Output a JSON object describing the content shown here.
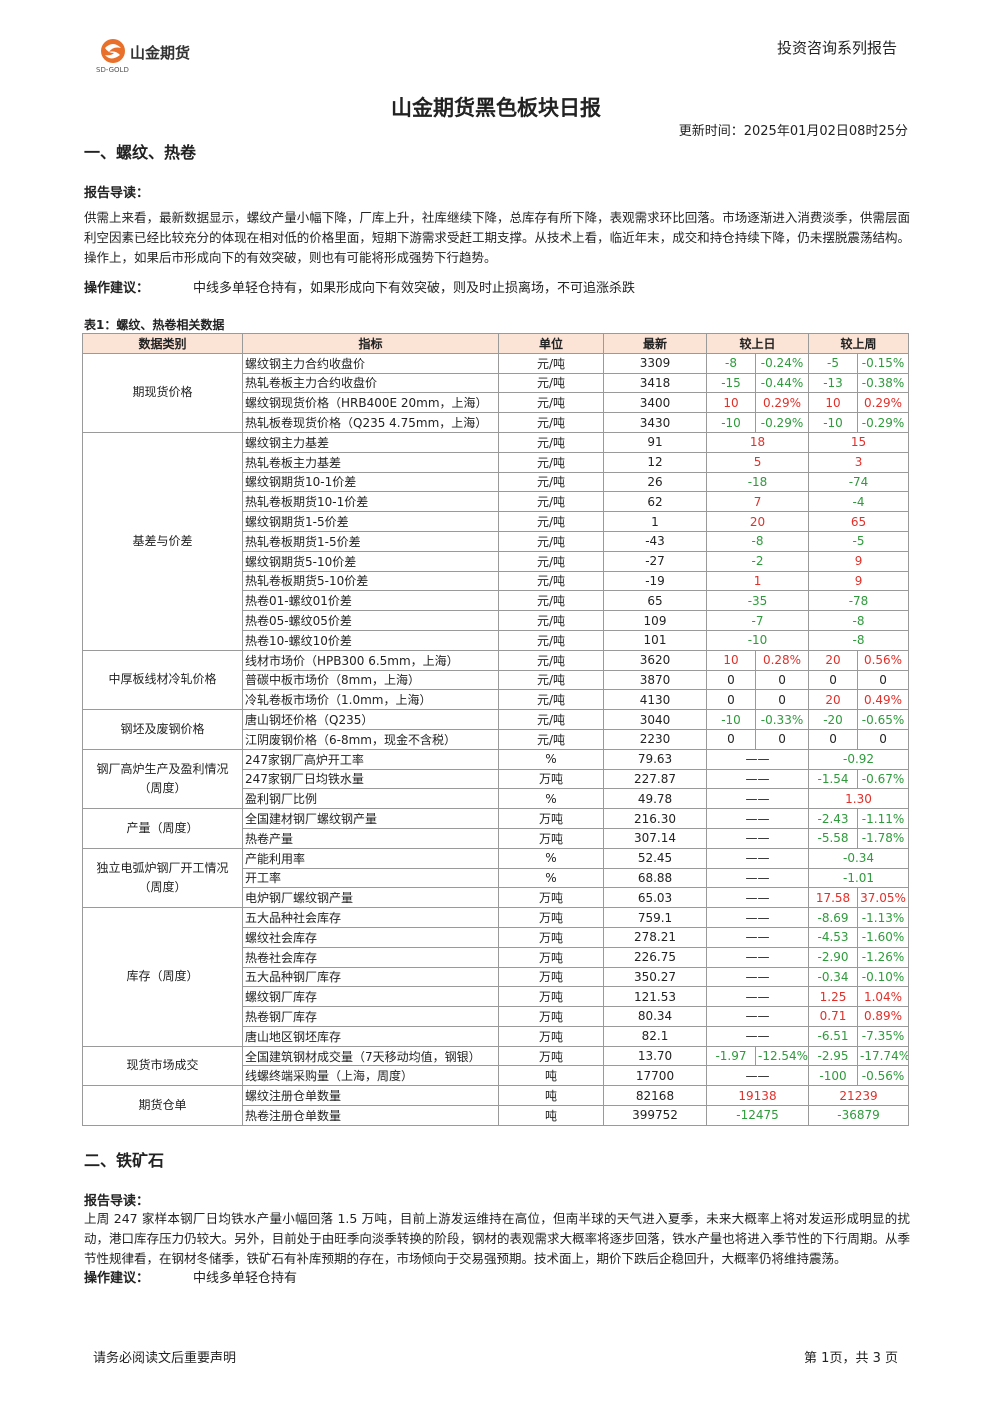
{
  "header": {
    "logo_text": "山金期货",
    "logo_sub": "SD-GOLD",
    "series": "投资咨询系列报告"
  },
  "title": "山金期货黑色板块日报",
  "update_time": "更新时间：2025年01月02日08时25分",
  "section1": {
    "heading": "一、螺纹、热卷",
    "guide_label": "报告导读：",
    "guide": "供需上来看，最新数据显示，螺纹产量小幅下降，厂库上升，社库继续下降，总库存有所下降，表观需求环比回落。市场逐渐进入消费淡季，供需层面利空因素已经比较充分的体现在相对低的价格里面，短期下游需求受赶工期支撑。从技术上看，临近年末，成交和持仓持续下降，仍未摆脱震荡结构。操作上，如果后市形成向下的有效突破，则也有可能将形成强势下行趋势。",
    "advice_label": "操作建议：",
    "advice": "中线多单轻仓持有，如果形成向下有效突破，则及时止损离场，不可追涨杀跌"
  },
  "table": {
    "caption": "表1：螺纹、热卷相关数据",
    "header": [
      "数据类别",
      "指标",
      "单位",
      "最新",
      "较上日",
      "较上周"
    ],
    "groups": [
      {
        "name": "期现货价格",
        "rows": [
          {
            "indicator": "螺纹钢主力合约收盘价",
            "unit": "元/吨",
            "latest": "3309",
            "day": [
              "-8",
              "-0.24%"
            ],
            "week": [
              "-5",
              "-0.15%"
            ]
          },
          {
            "indicator": "热轧卷板主力合约收盘价",
            "unit": "元/吨",
            "latest": "3418",
            "day": [
              "-15",
              "-0.44%"
            ],
            "week": [
              "-13",
              "-0.38%"
            ]
          },
          {
            "indicator": "螺纹钢现货价格（HRB400E 20mm，上海）",
            "unit": "元/吨",
            "latest": "3400",
            "day": [
              "10",
              "0.29%"
            ],
            "week": [
              "10",
              "0.29%"
            ]
          },
          {
            "indicator": "热轧板卷现货价格（Q235 4.75mm，上海）",
            "unit": "元/吨",
            "latest": "3430",
            "day": [
              "-10",
              "-0.29%"
            ],
            "week": [
              "-10",
              "-0.29%"
            ]
          }
        ]
      },
      {
        "name": "基差与价差",
        "rows": [
          {
            "indicator": "螺纹钢主力基差",
            "unit": "元/吨",
            "latest": "91",
            "day": [
              "18"
            ],
            "week": [
              "15"
            ]
          },
          {
            "indicator": "热轧卷板主力基差",
            "unit": "元/吨",
            "latest": "12",
            "day": [
              "5"
            ],
            "week": [
              "3"
            ]
          },
          {
            "indicator": "螺纹钢期货10-1价差",
            "unit": "元/吨",
            "latest": "26",
            "day": [
              "-18"
            ],
            "week": [
              "-74"
            ]
          },
          {
            "indicator": "热轧卷板期货10-1价差",
            "unit": "元/吨",
            "latest": "62",
            "day": [
              "7"
            ],
            "week": [
              "-4"
            ]
          },
          {
            "indicator": "螺纹钢期货1-5价差",
            "unit": "元/吨",
            "latest": "1",
            "day": [
              "20"
            ],
            "week": [
              "65"
            ]
          },
          {
            "indicator": "热轧卷板期货1-5价差",
            "unit": "元/吨",
            "latest": "-43",
            "day": [
              "-8"
            ],
            "week": [
              "-5"
            ]
          },
          {
            "indicator": "螺纹钢期货5-10价差",
            "unit": "元/吨",
            "latest": "-27",
            "day": [
              "-2"
            ],
            "week": [
              "9"
            ]
          },
          {
            "indicator": "热轧卷板期货5-10价差",
            "unit": "元/吨",
            "latest": "-19",
            "day": [
              "1"
            ],
            "week": [
              "9"
            ]
          },
          {
            "indicator": "热卷01-螺纹01价差",
            "unit": "元/吨",
            "latest": "65",
            "day": [
              "-35"
            ],
            "week": [
              "-78"
            ]
          },
          {
            "indicator": "热卷05-螺纹05价差",
            "unit": "元/吨",
            "latest": "109",
            "day": [
              "-7"
            ],
            "week": [
              "-8"
            ]
          },
          {
            "indicator": "热卷10-螺纹10价差",
            "unit": "元/吨",
            "latest": "101",
            "day": [
              "-10"
            ],
            "week": [
              "-8"
            ]
          }
        ]
      },
      {
        "name": "中厚板线材冷轧价格",
        "rows": [
          {
            "indicator": "线材市场价（HPB300 6.5mm，上海）",
            "unit": "元/吨",
            "latest": "3620",
            "day": [
              "10",
              "0.28%"
            ],
            "week": [
              "20",
              "0.56%"
            ]
          },
          {
            "indicator": "普碳中板市场价（8mm，上海）",
            "unit": "元/吨",
            "latest": "3870",
            "day": [
              "0",
              "0"
            ],
            "week": [
              "0",
              "0"
            ]
          },
          {
            "indicator": "冷轧卷板市场价（1.0mm，上海）",
            "unit": "元/吨",
            "latest": "4130",
            "day": [
              "0",
              "0"
            ],
            "week": [
              "20",
              "0.49%"
            ]
          }
        ]
      },
      {
        "name": "钢坯及废钢价格",
        "rows": [
          {
            "indicator": "唐山钢坯价格（Q235）",
            "unit": "元/吨",
            "latest": "3040",
            "day": [
              "-10",
              "-0.33%"
            ],
            "week": [
              "-20",
              "-0.65%"
            ]
          },
          {
            "indicator": "江阴废钢价格（6-8mm，现金不含税）",
            "unit": "元/吨",
            "latest": "2230",
            "day": [
              "0",
              "0"
            ],
            "week": [
              "0",
              "0"
            ]
          }
        ]
      },
      {
        "name": "钢厂高炉生产及盈利情况（周度）",
        "rows": [
          {
            "indicator": "247家钢厂高炉开工率",
            "unit": "%",
            "latest": "79.63",
            "day": [
              "——"
            ],
            "week": [
              "-0.92"
            ]
          },
          {
            "indicator": "247家钢厂日均铁水量",
            "unit": "万吨",
            "latest": "227.87",
            "day": [
              "——"
            ],
            "week": [
              "-1.54",
              "-0.67%"
            ]
          },
          {
            "indicator": "盈利钢厂比例",
            "unit": "%",
            "latest": "49.78",
            "day": [
              "——"
            ],
            "week": [
              "1.30"
            ]
          }
        ]
      },
      {
        "name": "产量（周度）",
        "rows": [
          {
            "indicator": "全国建材钢厂螺纹钢产量",
            "unit": "万吨",
            "latest": "216.30",
            "day": [
              "——"
            ],
            "week": [
              "-2.43",
              "-1.11%"
            ]
          },
          {
            "indicator": "热卷产量",
            "unit": "万吨",
            "latest": "307.14",
            "day": [
              "——"
            ],
            "week": [
              "-5.58",
              "-1.78%"
            ]
          }
        ]
      },
      {
        "name": "独立电弧炉钢厂开工情况（周度）",
        "rows": [
          {
            "indicator": "产能利用率",
            "unit": "%",
            "latest": "52.45",
            "day": [
              "——"
            ],
            "week": [
              "-0.34"
            ]
          },
          {
            "indicator": "开工率",
            "unit": "%",
            "latest": "68.88",
            "day": [
              "——"
            ],
            "week": [
              "-1.01"
            ]
          },
          {
            "indicator": "电炉钢厂螺纹钢产量",
            "unit": "万吨",
            "latest": "65.03",
            "day": [
              "——"
            ],
            "week": [
              "17.58",
              "37.05%"
            ]
          }
        ]
      },
      {
        "name": "库存（周度）",
        "rows": [
          {
            "indicator": "五大品种社会库存",
            "unit": "万吨",
            "latest": "759.1",
            "day": [
              "——"
            ],
            "week": [
              "-8.69",
              "-1.13%"
            ]
          },
          {
            "indicator": "螺纹社会库存",
            "unit": "万吨",
            "latest": "278.21",
            "day": [
              "——"
            ],
            "week": [
              "-4.53",
              "-1.60%"
            ]
          },
          {
            "indicator": "热卷社会库存",
            "unit": "万吨",
            "latest": "226.75",
            "day": [
              "——"
            ],
            "week": [
              "-2.90",
              "-1.26%"
            ]
          },
          {
            "indicator": "五大品种钢厂库存",
            "unit": "万吨",
            "latest": "350.27",
            "day": [
              "——"
            ],
            "week": [
              "-0.34",
              "-0.10%"
            ]
          },
          {
            "indicator": "螺纹钢厂库存",
            "unit": "万吨",
            "latest": "121.53",
            "day": [
              "——"
            ],
            "week": [
              "1.25",
              "1.04%"
            ]
          },
          {
            "indicator": "热卷钢厂库存",
            "unit": "万吨",
            "latest": "80.34",
            "day": [
              "——"
            ],
            "week": [
              "0.71",
              "0.89%"
            ]
          },
          {
            "indicator": "唐山地区钢坯库存",
            "unit": "万吨",
            "latest": "82.1",
            "day": [
              "——"
            ],
            "week": [
              "-6.51",
              "-7.35%"
            ]
          }
        ]
      },
      {
        "name": "现货市场成交",
        "rows": [
          {
            "indicator": "全国建筑钢材成交量（7天移动均值，钢银）",
            "unit": "万吨",
            "latest": "13.70",
            "day": [
              "-1.97",
              "-12.54%"
            ],
            "week": [
              "-2.95",
              "-17.74%"
            ]
          },
          {
            "indicator": "线螺终端采购量（上海，周度）",
            "unit": "吨",
            "latest": "17700",
            "day": [
              "——"
            ],
            "week": [
              "-100",
              "-0.56%"
            ]
          }
        ]
      },
      {
        "name": "期货仓单",
        "rows": [
          {
            "indicator": "螺纹注册仓单数量",
            "unit": "吨",
            "latest": "82168",
            "day": [
              "19138"
            ],
            "week": [
              "21239"
            ]
          },
          {
            "indicator": "热卷注册仓单数量",
            "unit": "吨",
            "latest": "399752",
            "day": [
              "-12475"
            ],
            "week": [
              "-36879"
            ]
          }
        ]
      }
    ]
  },
  "section2": {
    "heading": "二、铁矿石",
    "guide_label": "报告导读：",
    "guide": "上周 247 家样本钢厂日均铁水产量小幅回落 1.5 万吨，目前上游发运维持在高位，但南半球的天气进入夏季，未来大概率上将对发运形成明显的扰动，港口库存压力仍较大。另外，目前处于由旺季向淡季转换的阶段，钢材的表观需求大概率将逐步回落，铁水产量也将进入季节性的下行周期。从季节性规律看，在钢材冬储季，铁矿石有补库预期的存在，市场倾向于交易强预期。技术面上，期价下跌后企稳回升，大概率仍将维持震荡。",
    "advice_label": "操作建议：",
    "advice": "中线多单轻仓持有"
  },
  "footer": {
    "disclaimer": "请务必阅读文后重要声明",
    "page": "第 1页，共 3 页"
  }
}
